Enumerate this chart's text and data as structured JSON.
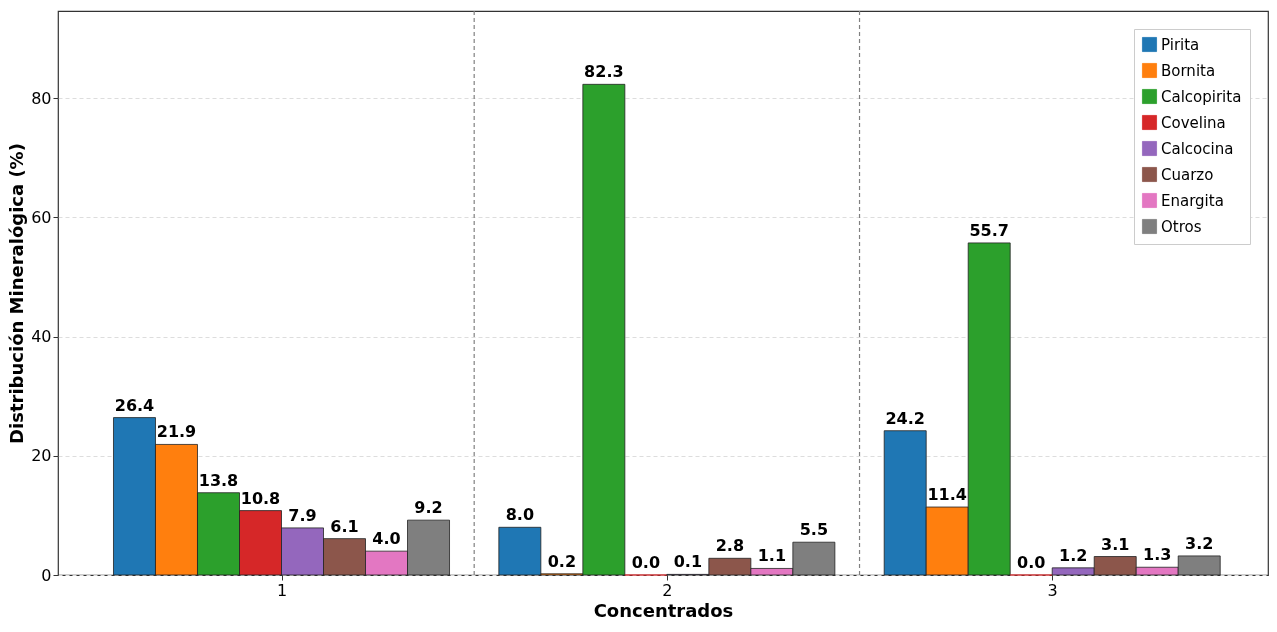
{
  "chart_data": {
    "type": "bar",
    "xlabel": "Concentrados",
    "ylabel": "Distribución Mineralógica (%)",
    "x": [
      1,
      2,
      3
    ],
    "xlim": [
      0.42,
      3.56
    ],
    "xticks": [
      1,
      2,
      3
    ],
    "ylim": [
      0,
      94.6
    ],
    "yticks": [
      0,
      20,
      40,
      60,
      80
    ],
    "grid": "y",
    "legend": "top right",
    "series": [
      {
        "name": "Pirita",
        "color": "#1f77b4",
        "values": [
          26.4,
          8.0,
          24.2
        ],
        "value_labels": [
          "26.4",
          "8.0",
          "24.2"
        ]
      },
      {
        "name": "Bornita",
        "color": "#ff7f0e",
        "values": [
          21.9,
          0.2,
          11.4
        ],
        "value_labels": [
          "21.9",
          "0.2",
          "11.4"
        ]
      },
      {
        "name": "Calcopirita",
        "color": "#2ca02c",
        "values": [
          13.8,
          82.3,
          55.7
        ],
        "value_labels": [
          "13.8",
          "82.3",
          "55.7"
        ]
      },
      {
        "name": "Covelina",
        "color": "#d62728",
        "values": [
          10.8,
          0.0,
          0.0
        ],
        "value_labels": [
          "10.8",
          "0.0",
          "0.0"
        ]
      },
      {
        "name": "Calcocina",
        "color": "#9467bd",
        "values": [
          7.9,
          0.1,
          1.2
        ],
        "value_labels": [
          "7.9",
          "0.1",
          "1.2"
        ]
      },
      {
        "name": "Cuarzo",
        "color": "#8c564b",
        "values": [
          6.1,
          2.8,
          3.1
        ],
        "value_labels": [
          "6.1",
          "2.8",
          "3.1"
        ]
      },
      {
        "name": "Enargita",
        "color": "#e377c2",
        "values": [
          4.0,
          1.1,
          1.3
        ],
        "value_labels": [
          "4.0",
          "1.1",
          "1.3"
        ]
      },
      {
        "name": "Otros",
        "color": "#7f7f7f",
        "values": [
          9.2,
          5.5,
          3.2
        ],
        "value_labels": [
          "9.2",
          "5.5",
          "3.2"
        ]
      }
    ],
    "ref_lines": [
      {
        "axis": "x",
        "value": 1.5,
        "color": "#808080",
        "line_style": "dashed"
      },
      {
        "axis": "x",
        "value": 2.5,
        "color": "#808080",
        "line_style": "dashed"
      }
    ]
  }
}
